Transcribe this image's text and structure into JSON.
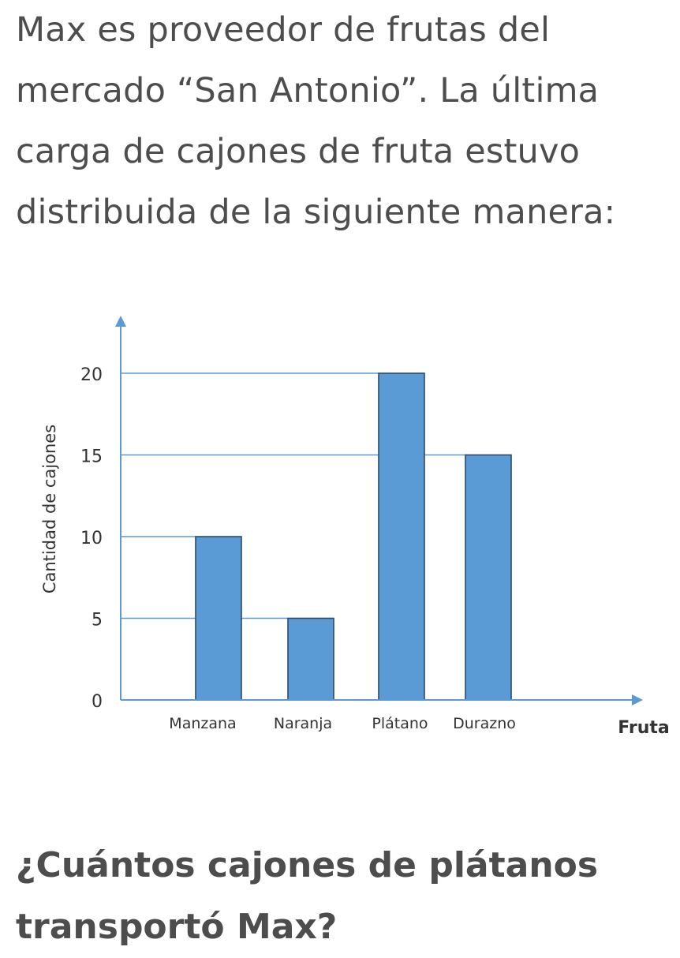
{
  "intro": {
    "lines": [
      "Max es proveedor de frutas del",
      "mercado “San Antonio”. La última",
      "carga de cajones de fruta estuvo",
      "distribuida de la siguiente manera:"
    ]
  },
  "chart_data": {
    "type": "bar",
    "title": "",
    "xlabel": "Fruta",
    "ylabel": "Cantidad de cajones",
    "categories": [
      "Manzana",
      "Naranja",
      "Plátano",
      "Durazno"
    ],
    "values": [
      10,
      5,
      20,
      15
    ],
    "yticks": [
      0,
      5,
      10,
      15,
      20
    ],
    "ylim": [
      0,
      20
    ],
    "grid": "horizontal lines extending from y-axis to bar tops",
    "colors": {
      "bar_fill": "#5b9bd5",
      "bar_stroke": "#2e4a6b",
      "axis": "#5b9bd5",
      "gridline": "#5b9bd5",
      "text": "#333333"
    }
  },
  "question": {
    "lines": [
      "¿Cuántos cajones de plátanos",
      "transportó Max?"
    ]
  }
}
